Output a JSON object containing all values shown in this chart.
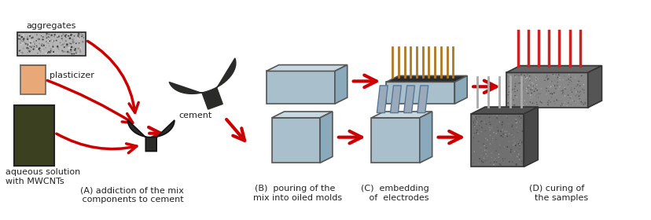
{
  "fig_width": 8.29,
  "fig_height": 2.8,
  "dpi": 100,
  "background_color": "#ffffff",
  "labels": {
    "aggregates": "aggregates",
    "plasticizer": "plasticizer",
    "aqueous": "aqueous solution\nwith MWCNTs",
    "cement": "cement",
    "A": "(A) addiction of the mix\n components to cement",
    "B": "(B)  pouring of the\n  mix into oiled molds",
    "C": "(C)  embedding\n   of  electrodes",
    "D": "(D) curing of\n  the samples"
  },
  "arrow_color": "#cc0000",
  "box_face": "#aabfcc",
  "box_top": "#c8d8e0",
  "box_right": "#8aaabb",
  "box_edge": "#555555",
  "cement_dark": "#2a2a28",
  "cement_base": "#1a1a18",
  "aggregates_color": "#b8b8b8",
  "plasticizer_color": "#e8a878",
  "mwcnt_color": "#3a4020",
  "rod_color": "#b07820",
  "electrode_color": "#8898aa",
  "photo_top_color": "#787878",
  "photo_top_side": "#555555",
  "photo_cube_color": "#606060"
}
